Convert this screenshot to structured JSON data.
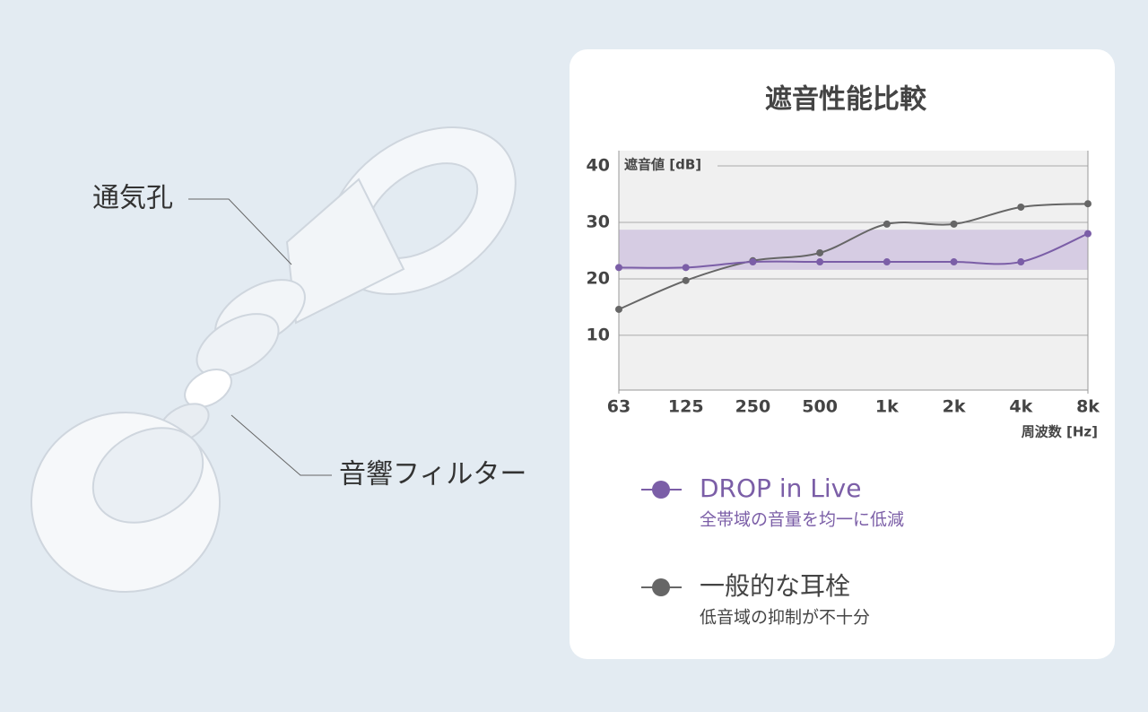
{
  "product_labels": {
    "vent": "通気孔",
    "filter": "音響フィルター"
  },
  "chart_data": {
    "type": "line",
    "title": "遮音性能比較",
    "y_label": "遮音値 [dB]",
    "x_label": "周波数 [Hz]",
    "categories": [
      "63",
      "125",
      "250",
      "500",
      "1k",
      "2k",
      "4k",
      "8k"
    ],
    "series": [
      {
        "name": "DROP in Live",
        "description": "全帯域の音量を均一に低減",
        "color": "#7b5ea7",
        "values": [
          22,
          22,
          23,
          23,
          23,
          23,
          23,
          28
        ]
      },
      {
        "name": "一般的な耳栓",
        "description": "低音域の抑制が不十分",
        "color": "#666666",
        "values": [
          14.6,
          19.7,
          23.2,
          24.6,
          29.7,
          29.7,
          32.7,
          33.3
        ]
      }
    ],
    "band": [
      21.6,
      28.7
    ],
    "band_color": "#d6cce3",
    "ylim": [
      0.3,
      42.7
    ],
    "yticks": [
      10,
      20,
      30,
      40
    ],
    "grid": true
  }
}
